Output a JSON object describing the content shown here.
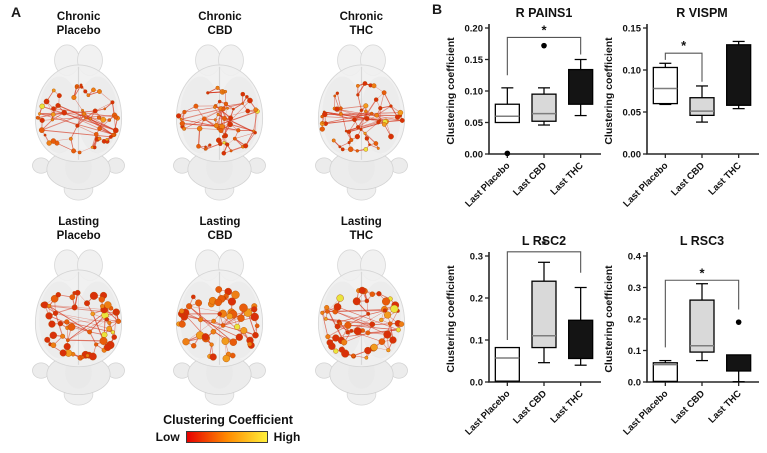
{
  "panel_a": {
    "letter": "A",
    "brains": [
      {
        "label_lines": [
          "Chronic",
          "Placebo"
        ],
        "seed": 11,
        "node_scale": 1.0
      },
      {
        "label_lines": [
          "Chronic",
          "CBD"
        ],
        "seed": 23,
        "node_scale": 1.0
      },
      {
        "label_lines": [
          "Chronic",
          "THC"
        ],
        "seed": 37,
        "node_scale": 1.0
      },
      {
        "label_lines": [
          "Lasting",
          "Placebo"
        ],
        "seed": 53,
        "node_scale": 1.45
      },
      {
        "label_lines": [
          "Lasting",
          "CBD"
        ],
        "seed": 71,
        "node_scale": 1.6
      },
      {
        "label_lines": [
          "Lasting",
          "THC"
        ],
        "seed": 89,
        "node_scale": 1.45
      }
    ],
    "legend": {
      "title": "Clustering Coefficient",
      "low_label": "Low",
      "high_label": "High",
      "gradient": [
        "#e60000",
        "#ff8a00",
        "#ffef3a"
      ]
    },
    "network_colors": {
      "edge": "#d42a10",
      "node_palette": [
        {
          "t": 0.4,
          "c": "#d93008"
        },
        {
          "t": 0.62,
          "c": "#e85c0c"
        },
        {
          "t": 0.85,
          "c": "#ee7f14"
        },
        {
          "t": 0.94,
          "c": "#f29c1e"
        },
        {
          "t": 1.01,
          "c": "#e9e43c"
        }
      ]
    }
  },
  "panel_b": {
    "letter": "B"
  },
  "chart_data": [
    {
      "type": "box",
      "title": "R PAINS1",
      "ylabel": "Clustering coefficient",
      "ylim": [
        0,
        0.2
      ],
      "yticks": [
        {
          "v": 0.0,
          "label": "0.00"
        },
        {
          "v": 0.05,
          "label": "0.05"
        },
        {
          "v": 0.1,
          "label": "0.10"
        },
        {
          "v": 0.15,
          "label": "0.15"
        },
        {
          "v": 0.2,
          "label": "0.20"
        }
      ],
      "categories": [
        "Last Placebo",
        "Last CBD",
        "Last THC"
      ],
      "boxes": [
        {
          "label": "Last Placebo",
          "fill": "#ffffff",
          "q1": 0.05,
          "median": 0.06,
          "q3": 0.079,
          "whisker_low": 0.05,
          "whisker_high": 0.105,
          "outliers": [
            0.001
          ]
        },
        {
          "label": "Last CBD",
          "fill": "#d9d9d9",
          "q1": 0.052,
          "median": 0.064,
          "q3": 0.095,
          "whisker_low": 0.046,
          "whisker_high": 0.105,
          "outliers": [
            0.172
          ]
        },
        {
          "label": "Last THC",
          "fill": "#141414",
          "q1": 0.079,
          "median": null,
          "q3": 0.134,
          "whisker_low": 0.061,
          "whisker_high": 0.15,
          "outliers": []
        }
      ],
      "bracket": {
        "from": 0,
        "to": 2,
        "top": 0.185,
        "left_end": 0.125,
        "right_end": 0.158,
        "label": "*"
      }
    },
    {
      "type": "box",
      "title": "R VISPM",
      "ylabel": "Clustering coefficient",
      "ylim": [
        0,
        0.15
      ],
      "yticks": [
        {
          "v": 0.0,
          "label": "0.00"
        },
        {
          "v": 0.05,
          "label": "0.05"
        },
        {
          "v": 0.1,
          "label": "0.10"
        },
        {
          "v": 0.15,
          "label": "0.15"
        }
      ],
      "categories": [
        "Last Placebo",
        "Last CBD",
        "Last THC"
      ],
      "boxes": [
        {
          "label": "Last Placebo",
          "fill": "#ffffff",
          "q1": 0.06,
          "median": 0.078,
          "q3": 0.103,
          "whisker_low": 0.059,
          "whisker_high": 0.108,
          "outliers": []
        },
        {
          "label": "Last CBD",
          "fill": "#d9d9d9",
          "q1": 0.046,
          "median": 0.051,
          "q3": 0.067,
          "whisker_low": 0.038,
          "whisker_high": 0.081,
          "outliers": []
        },
        {
          "label": "Last THC",
          "fill": "#141414",
          "q1": 0.058,
          "median": null,
          "q3": 0.13,
          "whisker_low": 0.054,
          "whisker_high": 0.134,
          "outliers": []
        }
      ],
      "bracket": {
        "from": 0,
        "to": 1,
        "top": 0.12,
        "left_end": 0.112,
        "right_end": 0.086,
        "label": "*"
      }
    },
    {
      "type": "box",
      "title": "L RSC2",
      "ylabel": "Clustering coefficient",
      "ylim": [
        0,
        0.3
      ],
      "yticks": [
        {
          "v": 0.0,
          "label": "0.0"
        },
        {
          "v": 0.1,
          "label": "0.1"
        },
        {
          "v": 0.2,
          "label": "0.2"
        },
        {
          "v": 0.3,
          "label": "0.3"
        }
      ],
      "categories": [
        "Last Placebo",
        "Last CBD",
        "Last THC"
      ],
      "boxes": [
        {
          "label": "Last Placebo",
          "fill": "#ffffff",
          "q1": 0.002,
          "median": 0.057,
          "q3": 0.082,
          "whisker_low": 0.002,
          "whisker_high": 0.082,
          "outliers": []
        },
        {
          "label": "Last CBD",
          "fill": "#d9d9d9",
          "q1": 0.082,
          "median": 0.11,
          "q3": 0.24,
          "whisker_low": 0.046,
          "whisker_high": 0.285,
          "outliers": []
        },
        {
          "label": "Last THC",
          "fill": "#141414",
          "q1": 0.056,
          "median": null,
          "q3": 0.147,
          "whisker_low": 0.04,
          "whisker_high": 0.225,
          "outliers": []
        }
      ],
      "bracket": {
        "from": 0,
        "to": 2,
        "top": 0.31,
        "left_end": 0.1,
        "right_end": 0.26,
        "label": "*"
      }
    },
    {
      "type": "box",
      "title": "L RSC3",
      "ylabel": "Clustering coefficient",
      "ylim": [
        0,
        0.4
      ],
      "yticks": [
        {
          "v": 0.0,
          "label": "0.0"
        },
        {
          "v": 0.1,
          "label": "0.1"
        },
        {
          "v": 0.2,
          "label": "0.2"
        },
        {
          "v": 0.3,
          "label": "0.3"
        },
        {
          "v": 0.4,
          "label": "0.4"
        }
      ],
      "categories": [
        "Last Placebo",
        "Last CBD",
        "Last THC"
      ],
      "boxes": [
        {
          "label": "Last Placebo",
          "fill": "#ffffff",
          "q1": 0.002,
          "median": 0.055,
          "q3": 0.061,
          "whisker_low": 0.002,
          "whisker_high": 0.068,
          "outliers": []
        },
        {
          "label": "Last CBD",
          "fill": "#d9d9d9",
          "q1": 0.095,
          "median": 0.115,
          "q3": 0.26,
          "whisker_low": 0.068,
          "whisker_high": 0.312,
          "outliers": []
        },
        {
          "label": "Last THC",
          "fill": "#141414",
          "q1": 0.035,
          "median": null,
          "q3": 0.086,
          "whisker_low": 0.001,
          "whisker_high": 0.086,
          "outliers": [
            0.19
          ]
        }
      ],
      "bracket": {
        "from": 0,
        "to": 2,
        "top": 0.323,
        "left_end": 0.11,
        "right_end": 0.23,
        "label": "*"
      }
    }
  ]
}
